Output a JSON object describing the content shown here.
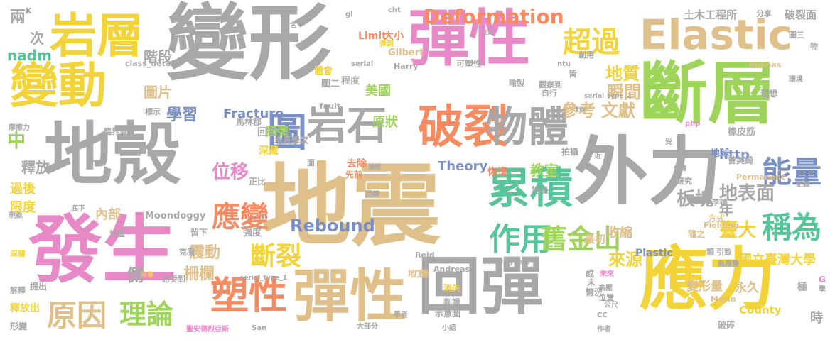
{
  "words": [
    {
      "text": "地震",
      "color": "#e0c08a"
    },
    {
      "text": "變形",
      "color": "#a8a8a8"
    },
    {
      "text": "地殼",
      "color": "#a8a8a8"
    },
    {
      "text": "彈性",
      "color": "#e889c7"
    },
    {
      "text": "斷層",
      "color": "#9fd45a"
    },
    {
      "text": "外力",
      "color": "#a8a8a8"
    },
    {
      "text": "發生",
      "color": "#e889c7"
    },
    {
      "text": "應力",
      "color": "#f2d43a"
    },
    {
      "text": "岩層",
      "color": "#f2d43a"
    },
    {
      "text": "變動",
      "color": "#f2d43a"
    },
    {
      "text": "回彈",
      "color": "#a8a8a8"
    },
    {
      "text": "彈性",
      "color": "#e0c08a"
    },
    {
      "text": "Elastic",
      "color": "#e0c08a"
    },
    {
      "text": "破裂",
      "color": "#f58b62"
    },
    {
      "text": "岩石",
      "color": "#a8a8a8"
    },
    {
      "text": "物體",
      "color": "#a8a8a8"
    },
    {
      "text": "累積",
      "color": "#58c49a"
    },
    {
      "text": "塑性",
      "color": "#f58b62"
    },
    {
      "text": "Deformation",
      "color": "#f58b62"
    },
    {
      "text": "超過",
      "color": "#f2d43a"
    },
    {
      "text": "能量",
      "color": "#7a90c4"
    },
    {
      "text": "稱為",
      "color": "#58c49a"
    },
    {
      "text": "原因",
      "color": "#e0c08a"
    },
    {
      "text": "理論",
      "color": "#9fd45a"
    },
    {
      "text": "作用",
      "color": "#58c49a"
    },
    {
      "text": "應變",
      "color": "#f58b62"
    },
    {
      "text": "舊金山",
      "color": "#9fd45a"
    },
    {
      "text": "斷裂",
      "color": "#f2d43a"
    },
    {
      "text": "位移",
      "color": "#e889c7"
    },
    {
      "text": "圖",
      "color": "#7a90c4"
    },
    {
      "text": "地質",
      "color": "#f2d43a"
    },
    {
      "text": "瞬間",
      "color": "#e0c08a"
    },
    {
      "text": "參考",
      "color": "#e0c08a"
    },
    {
      "text": "文獻",
      "color": "#e0c08a"
    },
    {
      "text": "地表面",
      "color": "#a8a8a8"
    },
    {
      "text": "板塊",
      "color": "#a8a8a8"
    },
    {
      "text": "臺大",
      "color": "#f2d43a"
    },
    {
      "text": "來源",
      "color": "#f2d43a"
    },
    {
      "text": "Rebound",
      "color": "#7a90c4"
    },
    {
      "text": "Theory",
      "color": "#7a90c4"
    },
    {
      "text": "http",
      "color": "#7a90c4"
    },
    {
      "text": "教室",
      "color": "#9fd45a"
    },
    {
      "text": "中",
      "color": "#9fd45a"
    },
    {
      "text": "震動",
      "color": "#e0c08a"
    },
    {
      "text": "柵欄",
      "color": "#e0c08a"
    },
    {
      "text": "年",
      "color": "#a8a8a8"
    },
    {
      "text": "釋放",
      "color": "#a8a8a8"
    },
    {
      "text": "階段",
      "color": "#a8a8a8"
    },
    {
      "text": "圖片",
      "color": "#e0c08a"
    },
    {
      "text": "學習",
      "color": "#7a90c4"
    },
    {
      "text": "美國",
      "color": "#9fd45a"
    },
    {
      "text": "原狀",
      "color": "#9fd45a"
    },
    {
      "text": "Fracture",
      "color": "#7a90c4"
    },
    {
      "text": "Plastic",
      "color": "#7a90c4"
    },
    {
      "text": "Moondoggy",
      "color": "#a8a8a8"
    },
    {
      "text": "土木工程所",
      "color": "#a8a8a8"
    },
    {
      "text": "破裂面",
      "color": "#a8a8a8"
    },
    {
      "text": "國立臺灣大學",
      "color": "#f2d43a"
    },
    {
      "text": "永久",
      "color": "#e0c08a"
    },
    {
      "text": "變形量",
      "color": "#e0c08a"
    },
    {
      "text": "收縮",
      "color": "#e0c08a"
    },
    {
      "text": "最初",
      "color": "#e0c08a"
    },
    {
      "text": "側",
      "color": "#a8a8a8"
    },
    {
      "text": "內部",
      "color": "#e0c08a"
    },
    {
      "text": "過後",
      "color": "#f2d43a"
    },
    {
      "text": "限度",
      "color": "#f2d43a"
    },
    {
      "text": "nadm",
      "color": "#58c49a"
    },
    {
      "text": "兩",
      "color": "#a8a8a8"
    },
    {
      "text": "次",
      "color": "#a8a8a8"
    },
    {
      "text": "時",
      "color": "#a8a8a8"
    },
    {
      "text": "極",
      "color": "#a8a8a8"
    },
    {
      "text": "County",
      "color": "#f2d43a"
    },
    {
      "text": "Limit",
      "color": "#f58b62"
    },
    {
      "text": "大小",
      "color": "#f58b62"
    },
    {
      "text": "Gilbert",
      "color": "#e0c08a"
    },
    {
      "text": "回後",
      "color": "#a8a8a8"
    },
    {
      "text": "回彈",
      "color": "#9fd45a"
    },
    {
      "text": "深藏",
      "color": "#f2d43a"
    },
    {
      "text": "地質學家",
      "color": "#a8a8a8"
    },
    {
      "text": "馬林郡",
      "color": "#a8a8a8"
    },
    {
      "text": "去除",
      "color": "#f58b62"
    },
    {
      "text": "先前",
      "color": "#f58b62"
    },
    {
      "text": "地表",
      "color": "#a8a8a8"
    },
    {
      "text": "恢復",
      "color": "#f58b62"
    },
    {
      "text": "拍攝",
      "color": "#a8a8a8"
    },
    {
      "text": "地球",
      "color": "#7a90c4"
    },
    {
      "text": "橡皮筋",
      "color": "#a8a8a8"
    },
    {
      "text": "曾美綺",
      "color": "#a8a8a8"
    },
    {
      "text": "理想",
      "color": "#a8a8a8"
    },
    {
      "text": "可塑性",
      "color": "#a8a8a8"
    },
    {
      "text": "體會",
      "color": "#f2d43a"
    },
    {
      "text": "程度",
      "color": "#a8a8a8"
    },
    {
      "text": "圖二",
      "color": "#a8a8a8"
    },
    {
      "text": "觀察到",
      "color": "#a8a8a8"
    },
    {
      "text": "自行",
      "color": "#a8a8a8"
    },
    {
      "text": "喻製",
      "color": "#a8a8a8"
    },
    {
      "text": "皆",
      "color": "#a8a8a8"
    },
    {
      "text": "創用",
      "color": "#a8a8a8"
    },
    {
      "text": "分享",
      "color": "#a8a8a8"
    },
    {
      "text": "圖三",
      "color": "#a8a8a8"
    },
    {
      "text": "物",
      "color": "#a8a8a8"
    },
    {
      "text": "Bolinas",
      "color": "#e0c08a"
    },
    {
      "text": "Harry",
      "color": "#a8a8a8"
    },
    {
      "text": "Fielding",
      "color": "#e0c08a"
    },
    {
      "text": "Reid",
      "color": "#a8a8a8"
    },
    {
      "text": "Andreas",
      "color": "#a8a8a8"
    },
    {
      "text": "Marin",
      "color": "#e0c08a"
    },
    {
      "text": "Permanent",
      "color": "#e0c08a"
    },
    {
      "text": "強度",
      "color": "#a8a8a8"
    },
    {
      "text": "地下",
      "color": "#e0c08a"
    },
    {
      "text": "力量",
      "color": "#e0c08a"
    },
    {
      "text": "消失",
      "color": "#f2d43a"
    },
    {
      "text": "判識",
      "color": "#a8a8a8"
    },
    {
      "text": "示意圖",
      "color": "#a8a8a8"
    },
    {
      "text": "未",
      "color": "#a8a8a8"
    },
    {
      "text": "情況",
      "color": "#a8a8a8"
    },
    {
      "text": "成",
      "color": "#a8a8a8"
    },
    {
      "text": "類",
      "color": "#a8a8a8"
    },
    {
      "text": "引致",
      "color": "#a8a8a8"
    },
    {
      "text": "無應變",
      "color": "#a8a8a8"
    },
    {
      "text": "未來",
      "color": "#e889c7"
    },
    {
      "text": "高壓",
      "color": "#a8a8a8"
    },
    {
      "text": "位置",
      "color": "#a8a8a8"
    },
    {
      "text": "公尺",
      "color": "#a8a8a8"
    },
    {
      "text": "破碎",
      "color": "#a8a8a8"
    },
    {
      "text": "隨之",
      "color": "#e0c08a"
    },
    {
      "text": "方式",
      "color": "#e0c08a"
    },
    {
      "text": "李德",
      "color": "#a8a8a8"
    },
    {
      "text": "研究",
      "color": "#a8a8a8"
    },
    {
      "text": "正比",
      "color": "#a8a8a8"
    },
    {
      "text": "留下",
      "color": "#a8a8a8"
    },
    {
      "text": "克服",
      "color": "#a8a8a8"
    },
    {
      "text": "感受到",
      "color": "#a8a8a8"
    },
    {
      "text": "完善",
      "color": "#f2d43a"
    },
    {
      "text": "提出",
      "color": "#a8a8a8"
    },
    {
      "text": "解釋",
      "color": "#a8a8a8"
    },
    {
      "text": "釋放出",
      "color": "#f2d43a"
    },
    {
      "text": "形變",
      "color": "#a8a8a8"
    },
    {
      "text": "地區",
      "color": "#a8a8a8"
    },
    {
      "text": "深層",
      "color": "#f2d43a"
    },
    {
      "text": "現象",
      "color": "#a8a8a8"
    },
    {
      "text": "底下",
      "color": "#a8a8a8"
    },
    {
      "text": "摩擦力",
      "color": "#a8a8a8"
    },
    {
      "text": "臨界值",
      "color": "#a8a8a8"
    },
    {
      "text": "標示",
      "color": "#a8a8a8"
    },
    {
      "text": "class_detail",
      "color": "#a8a8a8"
    },
    {
      "text": "serial",
      "color": "#a8a8a8"
    },
    {
      "text": "serial_type_1",
      "color": "#a8a8a8"
    },
    {
      "text": "serial_type_2",
      "color": "#a8a8a8"
    },
    {
      "text": "serial_type_3",
      "color": "#a8a8a8"
    },
    {
      "text": "fault",
      "color": "#a8a8a8"
    },
    {
      "text": "ntu",
      "color": "#a8a8a8"
    },
    {
      "text": "tw",
      "color": "#a8a8a8"
    },
    {
      "text": "cht",
      "color": "#a8a8a8"
    },
    {
      "text": "gl",
      "color": "#a8a8a8"
    },
    {
      "text": "php",
      "color": "#e889c7"
    },
    {
      "text": "CC",
      "color": "#a8a8a8"
    },
    {
      "text": "San",
      "color": "#a8a8a8"
    },
    {
      "text": "學者",
      "color": "#a8a8a8"
    },
    {
      "text": "大部分",
      "color": "#a8a8a8"
    },
    {
      "text": "小結",
      "color": "#a8a8a8"
    },
    {
      "text": "作者",
      "color": "#a8a8a8"
    },
    {
      "text": "聖安德烈亞斯",
      "color": "#e889c7"
    },
    {
      "text": "姓名",
      "color": "#a8a8a8"
    },
    {
      "text": "彈到",
      "color": "#f2d43a"
    },
    {
      "text": "過程",
      "color": "#a8a8a8"
    },
    {
      "text": "回轉",
      "color": "#a8a8a8"
    },
    {
      "text": "面",
      "color": "#a8a8a8"
    },
    {
      "text": "近",
      "color": "#a8a8a8"
    },
    {
      "text": "受",
      "color": "#a8a8a8"
    },
    {
      "text": "伴隨",
      "color": "#a8a8a8"
    },
    {
      "text": "記錄",
      "color": "#a8a8a8"
    },
    {
      "text": "環境",
      "color": "#a8a8a8"
    },
    {
      "text": "學",
      "color": "#a8a8a8"
    },
    {
      "text": "性質",
      "color": "#a8a8a8"
    },
    {
      "text": "K",
      "color": "#a8a8a8"
    },
    {
      "text": "G",
      "color": "#e889c7"
    }
  ]
}
